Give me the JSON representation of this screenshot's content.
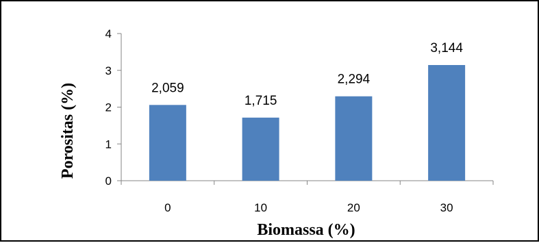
{
  "chart_data": {
    "type": "bar",
    "title": "",
    "xlabel": "Biomassa (%)",
    "ylabel": "Porositas (%)",
    "categories": [
      "0",
      "10",
      "20",
      "30"
    ],
    "values": [
      2.059,
      1.715,
      2.294,
      3.144
    ],
    "data_labels": [
      "2,059",
      "1,715",
      "2,294",
      "3,144"
    ],
    "y_ticks": [
      "0",
      "1",
      "2",
      "3",
      "4"
    ],
    "ylim": [
      0,
      4
    ],
    "grid": false,
    "legend": "none",
    "bar_color": "#4F81BD",
    "axis_color": "#868686"
  }
}
